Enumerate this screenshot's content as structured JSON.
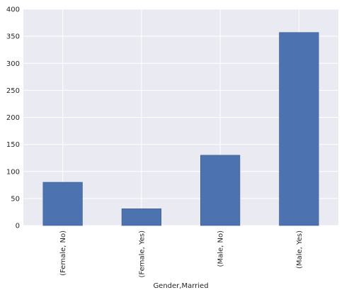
{
  "chart_data": {
    "type": "bar",
    "title": "",
    "xlabel": "Gender,Married",
    "ylabel": "",
    "categories": [
      "(Female, No)",
      "(Female, Yes)",
      "(Male, No)",
      "(Male, Yes)"
    ],
    "values": [
      80,
      31,
      130,
      357
    ],
    "ylim": [
      0,
      400
    ],
    "yticks": [
      0,
      50,
      100,
      150,
      200,
      250,
      300,
      350,
      400
    ],
    "grid": true,
    "legend": "none",
    "colors": {
      "bar": "#4C72B0",
      "bar_edge": "#3a5a8c",
      "plot_background": "#EAEAF2",
      "grid": "#ffffff",
      "text": "#262626"
    }
  }
}
